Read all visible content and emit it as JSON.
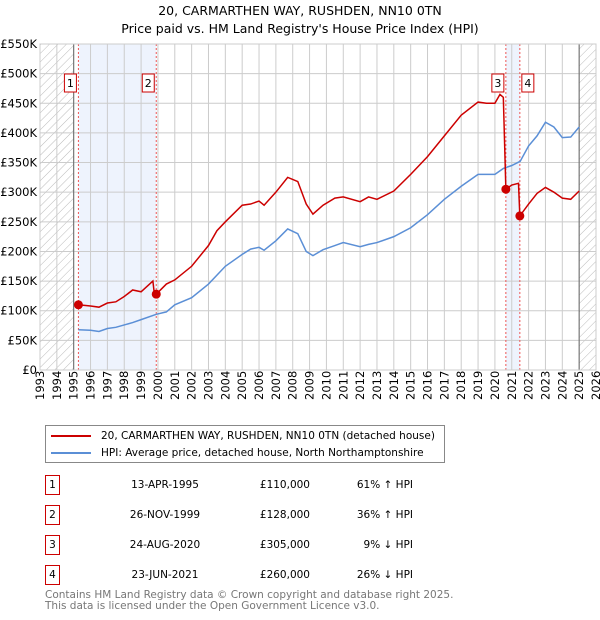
{
  "chart_data": {
    "type": "line",
    "title": "20, CARMARTHEN WAY, RUSHDEN, NN10 0TN",
    "subtitle": "Price paid vs. HM Land Registry's House Price Index (HPI)",
    "xlim": [
      1993,
      2026
    ],
    "ylim": [
      0,
      550000
    ],
    "x_ticks": [
      "1993",
      "1994",
      "1995",
      "1996",
      "1997",
      "1998",
      "1999",
      "2000",
      "2001",
      "2002",
      "2003",
      "2004",
      "2005",
      "2006",
      "2007",
      "2008",
      "2009",
      "2010",
      "2011",
      "2012",
      "2013",
      "2014",
      "2015",
      "2016",
      "2017",
      "2018",
      "2019",
      "2020",
      "2021",
      "2022",
      "2023",
      "2024",
      "2025",
      "2026"
    ],
    "y_ticks": [
      {
        "v": 0,
        "label": "£0"
      },
      {
        "v": 50000,
        "label": "£50K"
      },
      {
        "v": 100000,
        "label": "£100K"
      },
      {
        "v": 150000,
        "label": "£150K"
      },
      {
        "v": 200000,
        "label": "£200K"
      },
      {
        "v": 250000,
        "label": "£250K"
      },
      {
        "v": 300000,
        "label": "£300K"
      },
      {
        "v": 350000,
        "label": "£350K"
      },
      {
        "v": 400000,
        "label": "£400K"
      },
      {
        "v": 450000,
        "label": "£450K"
      },
      {
        "v": 500000,
        "label": "£500K"
      },
      {
        "v": 550000,
        "label": "£550K"
      }
    ],
    "grid": true,
    "hatched_ranges": [
      [
        1993,
        1995
      ],
      [
        2025,
        2026
      ]
    ],
    "shaded_ranges": [
      [
        1995.28,
        1999.9
      ],
      [
        2020.65,
        2021.48
      ]
    ],
    "series": [
      {
        "name": "20, CARMARTHEN WAY, RUSHDEN, NN10 0TN (detached house)",
        "color": "#cc0000",
        "x": [
          1995.28,
          1996,
          1996.5,
          1997,
          1997.5,
          1998,
          1998.5,
          1999,
          1999.7,
          1999.78,
          1999.9,
          2000.5,
          2001,
          2002,
          2003,
          2003.5,
          2004,
          2005,
          2005.5,
          2006,
          2006.3,
          2007,
          2007.7,
          2008.3,
          2008.8,
          2009.2,
          2009.8,
          2010.5,
          2011,
          2012,
          2012.5,
          2013,
          2014,
          2015,
          2016,
          2017,
          2018,
          2019,
          2019.5,
          2020,
          2020.3,
          2020.5,
          2020.65,
          2021,
          2021.4,
          2021.48,
          2022,
          2022.5,
          2023,
          2023.5,
          2024,
          2024.5,
          2025
        ],
        "y": [
          110000,
          108000,
          106000,
          113000,
          115000,
          124000,
          135000,
          132000,
          150000,
          130000,
          128000,
          145000,
          152000,
          175000,
          210000,
          235000,
          250000,
          278000,
          280000,
          285000,
          278000,
          300000,
          325000,
          318000,
          280000,
          263000,
          278000,
          290000,
          292000,
          284000,
          292000,
          288000,
          302000,
          330000,
          360000,
          395000,
          430000,
          452000,
          450000,
          450000,
          465000,
          460000,
          305000,
          312000,
          315000,
          260000,
          280000,
          298000,
          308000,
          300000,
          290000,
          288000,
          302000
        ]
      },
      {
        "name": "HPI: Average price, detached house, North Northamptonshire",
        "color": "#5b8fd6",
        "x": [
          1995.28,
          1996,
          1996.5,
          1997,
          1997.5,
          1998,
          1998.5,
          1999,
          1999.9,
          2000.5,
          2001,
          2002,
          2003,
          2004,
          2005,
          2005.5,
          2006,
          2006.3,
          2007,
          2007.7,
          2008.3,
          2008.8,
          2009.2,
          2009.8,
          2010.5,
          2011,
          2012,
          2012.5,
          2013,
          2014,
          2015,
          2016,
          2017,
          2018,
          2019,
          2020,
          2020.5,
          2021,
          2021.5,
          2022,
          2022.5,
          2023,
          2023.5,
          2024,
          2024.5,
          2025
        ],
        "y": [
          68000,
          67000,
          65000,
          70000,
          72000,
          76000,
          80000,
          85000,
          94000,
          98000,
          110000,
          122000,
          145000,
          175000,
          195000,
          204000,
          207000,
          202000,
          218000,
          238000,
          230000,
          200000,
          193000,
          203000,
          210000,
          215000,
          208000,
          212000,
          215000,
          225000,
          240000,
          262000,
          288000,
          310000,
          330000,
          330000,
          340000,
          345000,
          352000,
          378000,
          395000,
          418000,
          410000,
          392000,
          393000,
          410000
        ]
      }
    ],
    "sales": [
      {
        "id": "1",
        "x": 1995.28,
        "y": 110000,
        "date": "13-APR-1995",
        "price": "£110,000",
        "hpi": "61% ↑ HPI"
      },
      {
        "id": "2",
        "x": 1999.9,
        "y": 128000,
        "date": "26-NOV-1999",
        "price": "£128,000",
        "hpi": "36% ↑ HPI"
      },
      {
        "id": "3",
        "x": 2020.65,
        "y": 305000,
        "date": "24-AUG-2020",
        "price": "£305,000",
        "hpi": "9% ↓ HPI"
      },
      {
        "id": "4",
        "x": 2021.48,
        "y": 260000,
        "date": "23-JUN-2021",
        "price": "£260,000",
        "hpi": "26% ↓ HPI"
      }
    ]
  },
  "footer": [
    "Contains HM Land Registry data © Crown copyright and database right 2025.",
    "This data is licensed under the Open Government Licence v3.0."
  ]
}
